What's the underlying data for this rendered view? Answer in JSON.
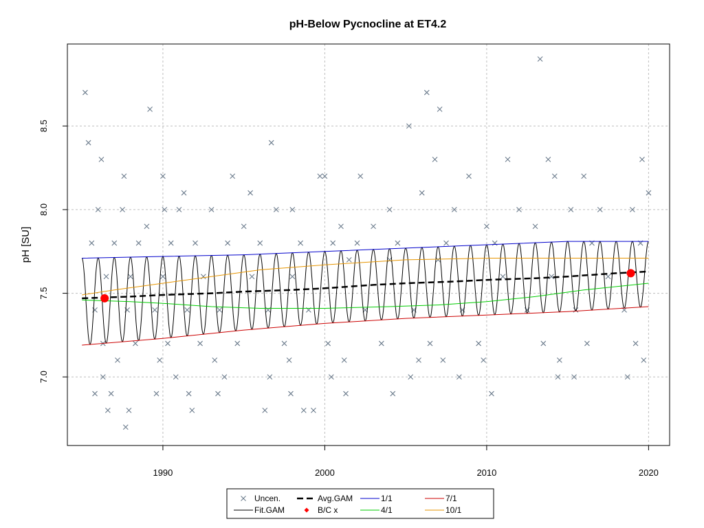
{
  "chart_data": {
    "type": "scatter",
    "title": "pH-Below Pycnocline at ET4.2",
    "xlabel": "",
    "ylabel": "pH [SU]",
    "xlim": [
      1984.1,
      2021.3
    ],
    "ylim": [
      6.59,
      8.99
    ],
    "x_ticks": [
      1990,
      2000,
      2010,
      2020
    ],
    "x_tick_labels": [
      "1990",
      "2000",
      "2010",
      "2020"
    ],
    "y_ticks": [
      7.0,
      7.5,
      8.0,
      8.5
    ],
    "y_tick_labels": [
      "7.0",
      "7.5",
      "8.0",
      "8.5"
    ],
    "grid": true,
    "legend_position": "bottom",
    "legend": [
      {
        "label": "Uncen.",
        "kind": "marker-x",
        "color": "#6b7b8c"
      },
      {
        "label": "Fit.GAM",
        "kind": "line",
        "color": "#000000"
      },
      {
        "label": "Avg.GAM",
        "kind": "dashed",
        "color": "#000000"
      },
      {
        "label": "B/C x",
        "kind": "marker-diamond",
        "color": "#ff0000"
      },
      {
        "label": "1/1",
        "kind": "line",
        "color": "#0000cc"
      },
      {
        "label": "4/1",
        "kind": "line",
        "color": "#00cc00"
      },
      {
        "label": "7/1",
        "kind": "line",
        "color": "#cc0000"
      },
      {
        "label": "10/1",
        "kind": "line",
        "color": "#e69500"
      }
    ],
    "colors": {
      "uncen": "#6b7b8c",
      "fit": "#000000",
      "avg": "#000000",
      "bc": "#ff0000",
      "jan": "#0000cc",
      "apr": "#00cc00",
      "jul": "#cc0000",
      "oct": "#e69500",
      "grid": "#bdbdbd"
    },
    "baseline_compare": [
      {
        "x": 1986.4,
        "y": 7.47
      },
      {
        "x": 2018.9,
        "y": 7.62
      }
    ],
    "seasonal_lines": {
      "jan": [
        [
          1985.0,
          7.71
        ],
        [
          1990,
          7.72
        ],
        [
          1995,
          7.73
        ],
        [
          2000,
          7.75
        ],
        [
          2005,
          7.77
        ],
        [
          2010,
          7.79
        ],
        [
          2015,
          7.81
        ],
        [
          2020,
          7.81
        ]
      ],
      "apr": [
        [
          1985.0,
          7.46
        ],
        [
          1988,
          7.45
        ],
        [
          1990,
          7.44
        ],
        [
          1993,
          7.42
        ],
        [
          1996,
          7.41
        ],
        [
          2000,
          7.41
        ],
        [
          2004,
          7.42
        ],
        [
          2007,
          7.43
        ],
        [
          2010,
          7.45
        ],
        [
          2013,
          7.48
        ],
        [
          2016,
          7.52
        ],
        [
          2020,
          7.56
        ]
      ],
      "jul": [
        [
          1985.0,
          7.19
        ],
        [
          1990,
          7.23
        ],
        [
          1995,
          7.28
        ],
        [
          2000,
          7.32
        ],
        [
          2005,
          7.35
        ],
        [
          2010,
          7.37
        ],
        [
          2015,
          7.39
        ],
        [
          2020,
          7.42
        ]
      ],
      "oct": [
        [
          1985.0,
          7.49
        ],
        [
          1987,
          7.52
        ],
        [
          1990,
          7.56
        ],
        [
          1993,
          7.6
        ],
        [
          1996,
          7.64
        ],
        [
          2000,
          7.67
        ],
        [
          2005,
          7.7
        ],
        [
          2010,
          7.71
        ],
        [
          2015,
          7.71
        ],
        [
          2020,
          7.71
        ]
      ]
    },
    "avg_gam": [
      [
        1985.0,
        7.47
      ],
      [
        1988,
        7.48
      ],
      [
        1990,
        7.49
      ],
      [
        1993,
        7.5
      ],
      [
        1995,
        7.51
      ],
      [
        1998,
        7.52
      ],
      [
        2000,
        7.53
      ],
      [
        2003,
        7.55
      ],
      [
        2005,
        7.56
      ],
      [
        2008,
        7.57
      ],
      [
        2010,
        7.58
      ],
      [
        2013,
        7.59
      ],
      [
        2015,
        7.6
      ],
      [
        2018,
        7.62
      ],
      [
        2020,
        7.63
      ]
    ],
    "fit_gam": {
      "start": 1985.0,
      "end": 2020.0,
      "period": 1.0,
      "phase_peak": 0.0
    },
    "points": [
      {
        "x": 1985.2,
        "y": 8.7
      },
      {
        "x": 1985.4,
        "y": 8.4
      },
      {
        "x": 1986.2,
        "y": 8.3
      },
      {
        "x": 1987.6,
        "y": 8.2
      },
      {
        "x": 1989.2,
        "y": 8.6
      },
      {
        "x": 1990.0,
        "y": 8.2
      },
      {
        "x": 1991.3,
        "y": 8.1
      },
      {
        "x": 1994.3,
        "y": 8.2
      },
      {
        "x": 1995.4,
        "y": 8.1
      },
      {
        "x": 1996.7,
        "y": 8.4
      },
      {
        "x": 1999.7,
        "y": 8.2
      },
      {
        "x": 2000.0,
        "y": 8.2
      },
      {
        "x": 2002.2,
        "y": 8.2
      },
      {
        "x": 2005.2,
        "y": 8.5
      },
      {
        "x": 2006.3,
        "y": 8.7
      },
      {
        "x": 2007.1,
        "y": 8.6
      },
      {
        "x": 2006.8,
        "y": 8.3
      },
      {
        "x": 2008.9,
        "y": 8.2
      },
      {
        "x": 2011.3,
        "y": 8.3
      },
      {
        "x": 2013.3,
        "y": 8.9
      },
      {
        "x": 2013.8,
        "y": 8.3
      },
      {
        "x": 2014.2,
        "y": 8.2
      },
      {
        "x": 2016.0,
        "y": 8.2
      },
      {
        "x": 2019.6,
        "y": 8.3
      },
      {
        "x": 2020.0,
        "y": 8.1
      },
      {
        "x": 1986.0,
        "y": 8.0
      },
      {
        "x": 1987.5,
        "y": 8.0
      },
      {
        "x": 1989.0,
        "y": 7.9
      },
      {
        "x": 1990.1,
        "y": 8.0
      },
      {
        "x": 1991.0,
        "y": 8.0
      },
      {
        "x": 1993.0,
        "y": 8.0
      },
      {
        "x": 1995.0,
        "y": 7.9
      },
      {
        "x": 1997.0,
        "y": 8.0
      },
      {
        "x": 1998.0,
        "y": 8.0
      },
      {
        "x": 2001.0,
        "y": 7.9
      },
      {
        "x": 2003.0,
        "y": 7.9
      },
      {
        "x": 2004.0,
        "y": 8.0
      },
      {
        "x": 2006.0,
        "y": 8.1
      },
      {
        "x": 2008.0,
        "y": 8.0
      },
      {
        "x": 2010.0,
        "y": 7.9
      },
      {
        "x": 2012.0,
        "y": 8.0
      },
      {
        "x": 2015.2,
        "y": 8.0
      },
      {
        "x": 2017.0,
        "y": 8.0
      },
      {
        "x": 2019.0,
        "y": 8.0
      },
      {
        "x": 1985.6,
        "y": 7.8
      },
      {
        "x": 1987.0,
        "y": 7.8
      },
      {
        "x": 1988.5,
        "y": 7.8
      },
      {
        "x": 1990.5,
        "y": 7.8
      },
      {
        "x": 1992.0,
        "y": 7.8
      },
      {
        "x": 1994.0,
        "y": 7.8
      },
      {
        "x": 1996.0,
        "y": 7.8
      },
      {
        "x": 1998.5,
        "y": 7.8
      },
      {
        "x": 2000.5,
        "y": 7.8
      },
      {
        "x": 2002.0,
        "y": 7.8
      },
      {
        "x": 2004.5,
        "y": 7.8
      },
      {
        "x": 2007.5,
        "y": 7.8
      },
      {
        "x": 2010.5,
        "y": 7.8
      },
      {
        "x": 2013.0,
        "y": 7.9
      },
      {
        "x": 2016.5,
        "y": 7.8
      },
      {
        "x": 2019.5,
        "y": 7.8
      },
      {
        "x": 1986.5,
        "y": 7.6
      },
      {
        "x": 1988.0,
        "y": 7.6
      },
      {
        "x": 1990.0,
        "y": 7.6
      },
      {
        "x": 1992.5,
        "y": 7.6
      },
      {
        "x": 1995.5,
        "y": 7.6
      },
      {
        "x": 1998.0,
        "y": 7.6
      },
      {
        "x": 2001.5,
        "y": 7.7
      },
      {
        "x": 2004.0,
        "y": 7.7
      },
      {
        "x": 2007.0,
        "y": 7.7
      },
      {
        "x": 2011.0,
        "y": 7.6
      },
      {
        "x": 2014.0,
        "y": 7.6
      },
      {
        "x": 2017.5,
        "y": 7.6
      },
      {
        "x": 1985.8,
        "y": 7.4
      },
      {
        "x": 1987.8,
        "y": 7.4
      },
      {
        "x": 1989.5,
        "y": 7.4
      },
      {
        "x": 1991.5,
        "y": 7.4
      },
      {
        "x": 1993.5,
        "y": 7.4
      },
      {
        "x": 1996.5,
        "y": 7.4
      },
      {
        "x": 1999.0,
        "y": 7.4
      },
      {
        "x": 2002.5,
        "y": 7.4
      },
      {
        "x": 2005.5,
        "y": 7.4
      },
      {
        "x": 2008.5,
        "y": 7.4
      },
      {
        "x": 2012.5,
        "y": 7.4
      },
      {
        "x": 2015.5,
        "y": 7.4
      },
      {
        "x": 2018.5,
        "y": 7.4
      },
      {
        "x": 1986.3,
        "y": 7.2
      },
      {
        "x": 1988.3,
        "y": 7.2
      },
      {
        "x": 1990.3,
        "y": 7.2
      },
      {
        "x": 1992.3,
        "y": 7.2
      },
      {
        "x": 1994.6,
        "y": 7.2
      },
      {
        "x": 1997.5,
        "y": 7.2
      },
      {
        "x": 2000.2,
        "y": 7.2
      },
      {
        "x": 2003.5,
        "y": 7.2
      },
      {
        "x": 2006.5,
        "y": 7.2
      },
      {
        "x": 2009.5,
        "y": 7.2
      },
      {
        "x": 2013.5,
        "y": 7.2
      },
      {
        "x": 2016.2,
        "y": 7.2
      },
      {
        "x": 2019.2,
        "y": 7.2
      },
      {
        "x": 1987.2,
        "y": 7.1
      },
      {
        "x": 1989.8,
        "y": 7.1
      },
      {
        "x": 1993.2,
        "y": 7.1
      },
      {
        "x": 1997.8,
        "y": 7.1
      },
      {
        "x": 2001.2,
        "y": 7.1
      },
      {
        "x": 2005.8,
        "y": 7.1
      },
      {
        "x": 2007.3,
        "y": 7.1
      },
      {
        "x": 2009.8,
        "y": 7.1
      },
      {
        "x": 2014.5,
        "y": 7.1
      },
      {
        "x": 2019.7,
        "y": 7.1
      },
      {
        "x": 1986.3,
        "y": 7.0
      },
      {
        "x": 1990.8,
        "y": 7.0
      },
      {
        "x": 1993.8,
        "y": 7.0
      },
      {
        "x": 1996.6,
        "y": 7.0
      },
      {
        "x": 2000.4,
        "y": 7.0
      },
      {
        "x": 2005.3,
        "y": 7.0
      },
      {
        "x": 2008.3,
        "y": 7.0
      },
      {
        "x": 2014.4,
        "y": 7.0
      },
      {
        "x": 2015.4,
        "y": 7.0
      },
      {
        "x": 2018.7,
        "y": 7.0
      },
      {
        "x": 1985.8,
        "y": 6.9
      },
      {
        "x": 1986.8,
        "y": 6.9
      },
      {
        "x": 1989.6,
        "y": 6.9
      },
      {
        "x": 1991.6,
        "y": 6.9
      },
      {
        "x": 1993.4,
        "y": 6.9
      },
      {
        "x": 1997.9,
        "y": 6.9
      },
      {
        "x": 2001.3,
        "y": 6.9
      },
      {
        "x": 2004.2,
        "y": 6.9
      },
      {
        "x": 2010.3,
        "y": 6.9
      },
      {
        "x": 1986.6,
        "y": 6.8
      },
      {
        "x": 1987.9,
        "y": 6.8
      },
      {
        "x": 1991.8,
        "y": 6.8
      },
      {
        "x": 1996.3,
        "y": 6.8
      },
      {
        "x": 1998.7,
        "y": 6.8
      },
      {
        "x": 1999.3,
        "y": 6.8
      },
      {
        "x": 1987.7,
        "y": 6.7
      }
    ]
  }
}
